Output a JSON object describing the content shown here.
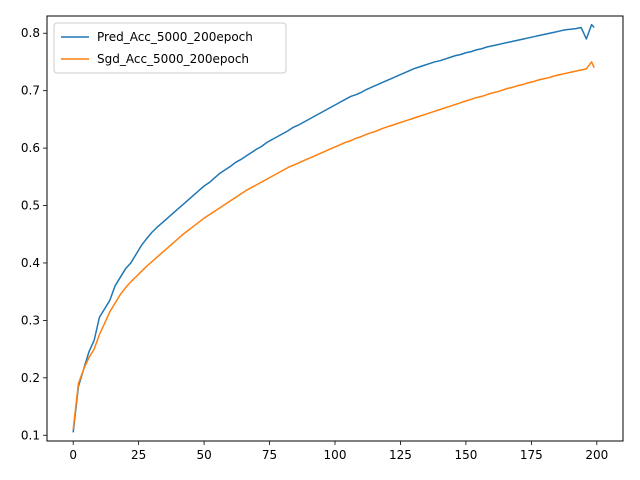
{
  "chart_data": {
    "type": "line",
    "title": "",
    "xlabel": "",
    "ylabel": "",
    "xlim": [
      -10,
      210
    ],
    "ylim": [
      0.09,
      0.83
    ],
    "xticks": [
      0,
      25,
      50,
      75,
      100,
      125,
      150,
      175,
      200
    ],
    "yticks": [
      0.1,
      0.2,
      0.3,
      0.4,
      0.5,
      0.6,
      0.7,
      0.8
    ],
    "xtick_labels": [
      "0",
      "25",
      "50",
      "75",
      "100",
      "125",
      "150",
      "175",
      "200"
    ],
    "ytick_labels": [
      "0.1",
      "0.2",
      "0.3",
      "0.4",
      "0.5",
      "0.6",
      "0.7",
      "0.8"
    ],
    "grid": false,
    "legend_position": "top-left",
    "series": [
      {
        "name": "Pred_Acc_5000_200epoch",
        "color": "#1f77b4",
        "x": [
          0,
          2,
          4,
          6,
          8,
          10,
          12,
          14,
          16,
          18,
          20,
          22,
          24,
          26,
          28,
          30,
          32,
          34,
          36,
          38,
          40,
          42,
          44,
          46,
          48,
          50,
          52,
          54,
          56,
          58,
          60,
          62,
          64,
          66,
          68,
          70,
          72,
          74,
          76,
          78,
          80,
          82,
          84,
          86,
          88,
          90,
          92,
          94,
          96,
          98,
          100,
          102,
          104,
          106,
          108,
          110,
          112,
          114,
          116,
          118,
          120,
          122,
          124,
          126,
          128,
          130,
          132,
          134,
          136,
          138,
          140,
          142,
          144,
          146,
          148,
          150,
          152,
          154,
          156,
          158,
          160,
          162,
          164,
          166,
          168,
          170,
          172,
          174,
          176,
          178,
          180,
          182,
          184,
          186,
          188,
          190,
          192,
          194,
          196,
          198,
          199
        ],
        "y": [
          0.105,
          0.185,
          0.215,
          0.245,
          0.265,
          0.305,
          0.32,
          0.335,
          0.36,
          0.375,
          0.39,
          0.4,
          0.415,
          0.43,
          0.442,
          0.453,
          0.462,
          0.47,
          0.478,
          0.486,
          0.494,
          0.502,
          0.51,
          0.518,
          0.526,
          0.534,
          0.54,
          0.548,
          0.556,
          0.562,
          0.568,
          0.575,
          0.58,
          0.586,
          0.592,
          0.598,
          0.603,
          0.61,
          0.615,
          0.62,
          0.625,
          0.63,
          0.636,
          0.64,
          0.645,
          0.65,
          0.655,
          0.66,
          0.665,
          0.67,
          0.675,
          0.68,
          0.685,
          0.69,
          0.693,
          0.697,
          0.702,
          0.706,
          0.71,
          0.714,
          0.718,
          0.722,
          0.726,
          0.73,
          0.734,
          0.738,
          0.741,
          0.744,
          0.747,
          0.75,
          0.752,
          0.755,
          0.758,
          0.761,
          0.763,
          0.766,
          0.768,
          0.771,
          0.773,
          0.776,
          0.778,
          0.78,
          0.782,
          0.784,
          0.786,
          0.788,
          0.79,
          0.792,
          0.794,
          0.796,
          0.798,
          0.8,
          0.802,
          0.804,
          0.806,
          0.807,
          0.808,
          0.81,
          0.79,
          0.815,
          0.81
        ]
      },
      {
        "name": "Sgd_Acc_5000_200epoch",
        "color": "#ff7f0e",
        "x": [
          0,
          2,
          4,
          6,
          8,
          10,
          12,
          14,
          16,
          18,
          20,
          22,
          24,
          26,
          28,
          30,
          32,
          34,
          36,
          38,
          40,
          42,
          44,
          46,
          48,
          50,
          52,
          54,
          56,
          58,
          60,
          62,
          64,
          66,
          68,
          70,
          72,
          74,
          76,
          78,
          80,
          82,
          84,
          86,
          88,
          90,
          92,
          94,
          96,
          98,
          100,
          102,
          104,
          106,
          108,
          110,
          112,
          114,
          116,
          118,
          120,
          122,
          124,
          126,
          128,
          130,
          132,
          134,
          136,
          138,
          140,
          142,
          144,
          146,
          148,
          150,
          152,
          154,
          156,
          158,
          160,
          162,
          164,
          166,
          168,
          170,
          172,
          174,
          176,
          178,
          180,
          182,
          184,
          186,
          188,
          190,
          192,
          194,
          196,
          198,
          199
        ],
        "y": [
          0.11,
          0.19,
          0.215,
          0.235,
          0.25,
          0.275,
          0.295,
          0.315,
          0.33,
          0.345,
          0.357,
          0.367,
          0.376,
          0.385,
          0.394,
          0.402,
          0.41,
          0.418,
          0.426,
          0.434,
          0.442,
          0.45,
          0.457,
          0.464,
          0.471,
          0.478,
          0.484,
          0.49,
          0.496,
          0.502,
          0.508,
          0.514,
          0.52,
          0.526,
          0.531,
          0.536,
          0.541,
          0.546,
          0.551,
          0.556,
          0.561,
          0.566,
          0.57,
          0.574,
          0.578,
          0.582,
          0.586,
          0.59,
          0.594,
          0.598,
          0.602,
          0.606,
          0.61,
          0.613,
          0.617,
          0.62,
          0.624,
          0.627,
          0.63,
          0.634,
          0.637,
          0.64,
          0.643,
          0.646,
          0.649,
          0.652,
          0.655,
          0.658,
          0.661,
          0.664,
          0.667,
          0.67,
          0.673,
          0.676,
          0.679,
          0.682,
          0.685,
          0.688,
          0.69,
          0.693,
          0.696,
          0.698,
          0.701,
          0.704,
          0.706,
          0.709,
          0.711,
          0.714,
          0.716,
          0.719,
          0.721,
          0.723,
          0.726,
          0.728,
          0.73,
          0.732,
          0.734,
          0.736,
          0.738,
          0.75,
          0.74
        ]
      }
    ]
  }
}
